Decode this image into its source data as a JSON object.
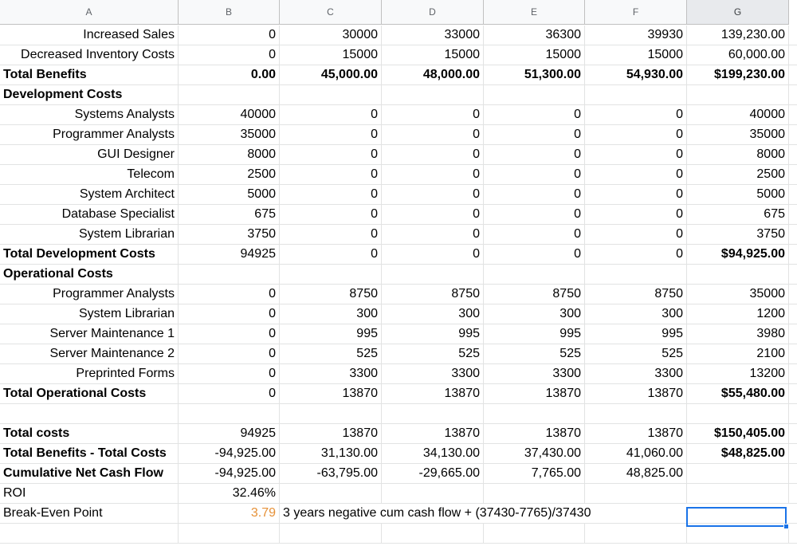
{
  "columns": [
    "A",
    "B",
    "C",
    "D",
    "E",
    "F",
    "G"
  ],
  "rows": [
    {
      "cells": [
        "Increased Sales",
        "0",
        "30000",
        "33000",
        "36300",
        "39930",
        "139,230.00"
      ],
      "bold": false,
      "alignA": "r"
    },
    {
      "cells": [
        "Decreased Inventory Costs",
        "0",
        "15000",
        "15000",
        "15000",
        "15000",
        "60,000.00"
      ],
      "bold": false,
      "alignA": "r"
    },
    {
      "cells": [
        "Total Benefits",
        "0.00",
        "45,000.00",
        "48,000.00",
        "51,300.00",
        "54,930.00",
        "$199,230.00"
      ],
      "bold": true,
      "alignA": "l"
    },
    {
      "cells": [
        "Development Costs",
        "",
        "",
        "",
        "",
        "",
        ""
      ],
      "bold": true,
      "alignA": "l"
    },
    {
      "cells": [
        "Systems Analysts",
        "40000",
        "0",
        "0",
        "0",
        "0",
        "40000"
      ],
      "bold": false,
      "alignA": "r"
    },
    {
      "cells": [
        "Programmer Analysts",
        "35000",
        "0",
        "0",
        "0",
        "0",
        "35000"
      ],
      "bold": false,
      "alignA": "r"
    },
    {
      "cells": [
        "GUI Designer",
        "8000",
        "0",
        "0",
        "0",
        "0",
        "8000"
      ],
      "bold": false,
      "alignA": "r"
    },
    {
      "cells": [
        "Telecom",
        "2500",
        "0",
        "0",
        "0",
        "0",
        "2500"
      ],
      "bold": false,
      "alignA": "r"
    },
    {
      "cells": [
        "System Architect",
        "5000",
        "0",
        "0",
        "0",
        "0",
        "5000"
      ],
      "bold": false,
      "alignA": "r"
    },
    {
      "cells": [
        "Database Specialist",
        "675",
        "0",
        "0",
        "0",
        "0",
        "675"
      ],
      "bold": false,
      "alignA": "r"
    },
    {
      "cells": [
        "System Librarian",
        "3750",
        "0",
        "0",
        "0",
        "0",
        "3750"
      ],
      "bold": false,
      "alignA": "r"
    },
    {
      "cells": [
        "Total Development Costs",
        "94925",
        "0",
        "0",
        "0",
        "0",
        "$94,925.00"
      ],
      "bold": true,
      "alignA": "l",
      "plainCols": [
        1,
        2,
        3,
        4,
        5
      ],
      "boldCols": [
        6
      ]
    },
    {
      "cells": [
        "Operational Costs",
        "",
        "",
        "",
        "",
        "",
        ""
      ],
      "bold": true,
      "alignA": "l"
    },
    {
      "cells": [
        "Programmer Analysts",
        "0",
        "8750",
        "8750",
        "8750",
        "8750",
        "35000"
      ],
      "bold": false,
      "alignA": "r"
    },
    {
      "cells": [
        "System Librarian",
        "0",
        "300",
        "300",
        "300",
        "300",
        "1200"
      ],
      "bold": false,
      "alignA": "r"
    },
    {
      "cells": [
        "Server Maintenance 1",
        "0",
        "995",
        "995",
        "995",
        "995",
        "3980"
      ],
      "bold": false,
      "alignA": "r"
    },
    {
      "cells": [
        "Server Maintenance 2",
        "0",
        "525",
        "525",
        "525",
        "525",
        "2100"
      ],
      "bold": false,
      "alignA": "r"
    },
    {
      "cells": [
        "Preprinted Forms",
        "0",
        "3300",
        "3300",
        "3300",
        "3300",
        "13200"
      ],
      "bold": false,
      "alignA": "r"
    },
    {
      "cells": [
        "Total Operational Costs",
        "0",
        "13870",
        "13870",
        "13870",
        "13870",
        "$55,480.00"
      ],
      "bold": true,
      "alignA": "l",
      "plainCols": [
        1,
        2,
        3,
        4,
        5
      ],
      "boldCols": [
        6
      ]
    },
    {
      "cells": [
        "",
        "",
        "",
        "",
        "",
        "",
        ""
      ],
      "bold": false,
      "alignA": "l"
    },
    {
      "cells": [
        "Total costs",
        "94925",
        "13870",
        "13870",
        "13870",
        "13870",
        "$150,405.00"
      ],
      "bold": true,
      "alignA": "l",
      "plainCols": [
        1,
        2,
        3,
        4,
        5
      ],
      "boldCols": [
        6
      ]
    },
    {
      "cells": [
        "Total Benefits - Total Costs",
        "-94,925.00",
        "31,130.00",
        "34,130.00",
        "37,430.00",
        "41,060.00",
        "$48,825.00"
      ],
      "bold": true,
      "alignA": "l",
      "plainCols": [
        1,
        2,
        3,
        4,
        5
      ],
      "boldCols": [
        6
      ]
    },
    {
      "cells": [
        "Cumulative Net Cash Flow",
        "-94,925.00",
        "-63,795.00",
        "-29,665.00",
        "7,765.00",
        "48,825.00",
        ""
      ],
      "bold": true,
      "alignA": "l",
      "plainCols": [
        1,
        2,
        3,
        4,
        5
      ]
    },
    {
      "cells": [
        "ROI",
        "32.46%",
        "",
        "",
        "",
        "",
        ""
      ],
      "bold": false,
      "alignA": "l"
    },
    {
      "cells": [
        "Break-Even Point",
        "3.79",
        "3 years negative cum cash flow + (37430-7765)/37430",
        "",
        "",
        "",
        ""
      ],
      "bold": false,
      "alignA": "l",
      "orangeCols": [
        1
      ],
      "spanC": true
    },
    {
      "cells": [
        "",
        "",
        "",
        "",
        "",
        "",
        ""
      ],
      "bold": false,
      "alignA": "l"
    }
  ],
  "colors": {
    "header_bg": "#f8f9fa",
    "selected_header_bg": "#e8eaed",
    "grid": "#e2e3e3",
    "selection": "#1a73e8",
    "orange_text": "#e69138"
  }
}
